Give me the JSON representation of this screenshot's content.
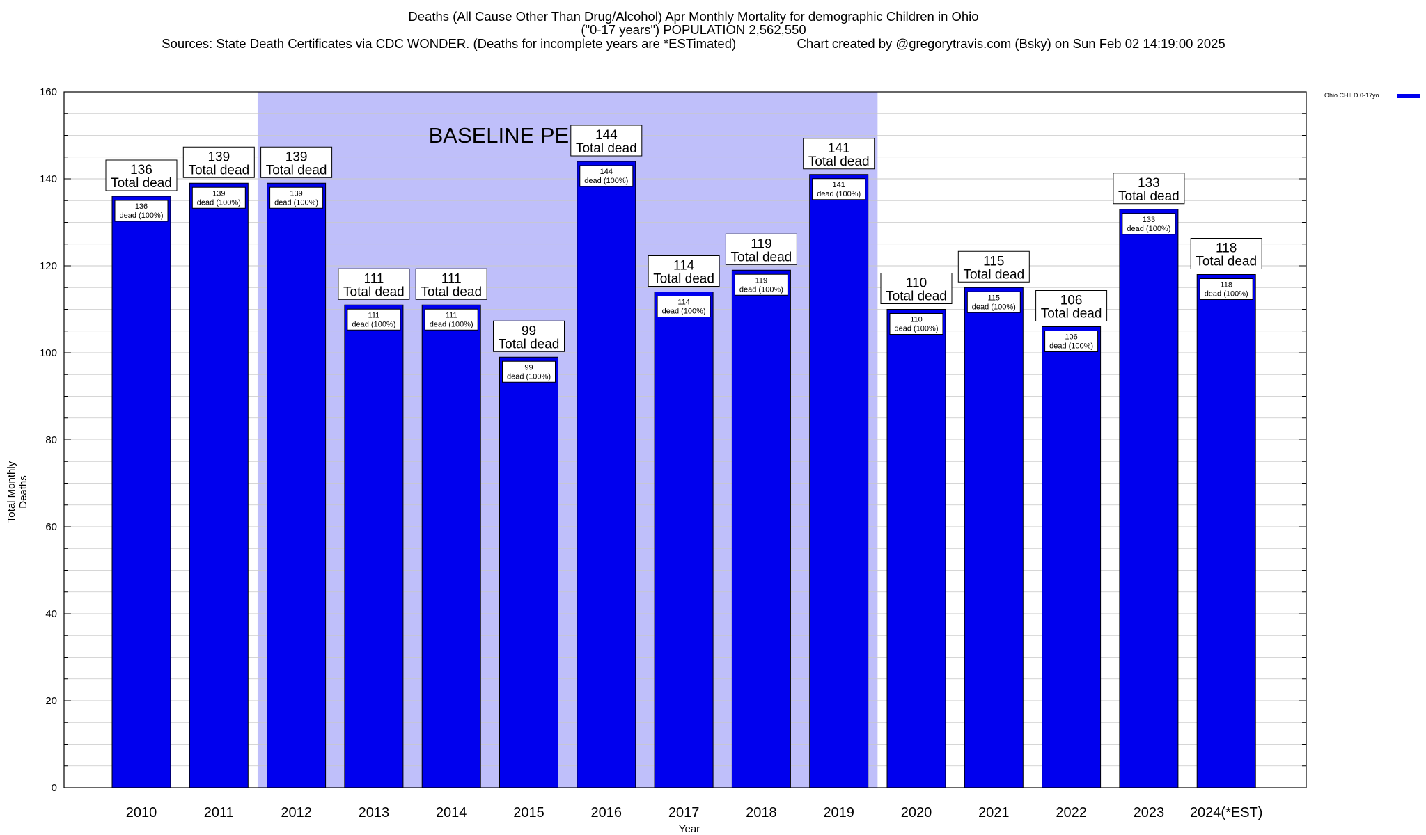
{
  "title_lines": [
    "Deaths (All Cause Other Than Drug/Alcohol) Apr Monthly Mortality for demographic Children in Ohio",
    "(\"0-17 years\") POPULATION 2,562,550",
    "Sources: State Death Certificates via CDC WONDER. (Deaths for incomplete years are *ESTimated)                 Chart created by @gregorytravis.com (Bsky) on Sun Feb 02 14:19:00 2025"
  ],
  "colors": {
    "bar": "#0000ee",
    "baseline_band": "#bfbffa",
    "grid": "#c8c8c8",
    "background": "#ffffff"
  },
  "chart_data": {
    "type": "bar",
    "title": "Deaths (All Cause Other Than Drug/Alcohol) Apr Monthly Mortality for demographic Children in Ohio",
    "xlabel": "Year",
    "ylabel": "Total Monthly Deaths",
    "ylim": [
      0,
      160
    ],
    "yticks": [
      0,
      20,
      40,
      60,
      80,
      100,
      120,
      140,
      160
    ],
    "grid": true,
    "legend_position": "top-right",
    "categories": [
      "2010",
      "2011",
      "2012",
      "2013",
      "2014",
      "2015",
      "2016",
      "2017",
      "2018",
      "2019",
      "2020",
      "2021",
      "2022",
      "2023",
      "2024(*EST)"
    ],
    "series": [
      {
        "name": "Ohio CHILD 0-17yo",
        "values": [
          136,
          139,
          139,
          111,
          111,
          99,
          144,
          114,
          119,
          141,
          110,
          115,
          106,
          133,
          118
        ]
      }
    ],
    "top_label_text": "Total dead",
    "inner_label_text": "dead (100%)",
    "baseline_period": {
      "label": "BASELINE PERIOD",
      "start": "2012",
      "end": "2019"
    }
  }
}
